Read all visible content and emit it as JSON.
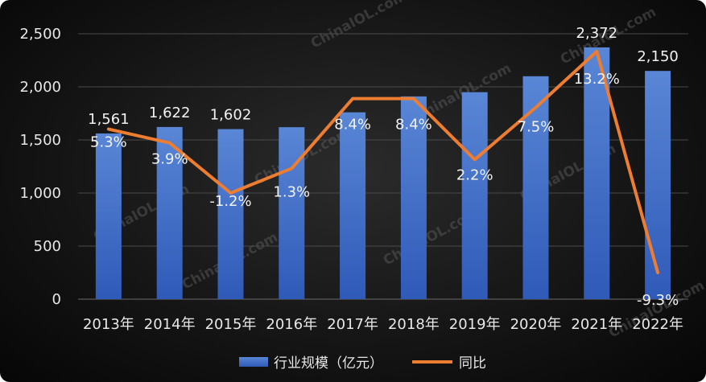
{
  "chart_data": {
    "type": "bar",
    "categories": [
      "2013年",
      "2014年",
      "2015年",
      "2016年",
      "2017年",
      "2018年",
      "2019年",
      "2020年",
      "2021年",
      "2022年"
    ],
    "series": [
      {
        "name": "行业规模（亿元）",
        "type": "bar",
        "axis": "left",
        "values": [
          1561,
          1622,
          1602,
          1620,
          1760,
          1910,
          1950,
          2100,
          2372,
          2150
        ],
        "labels": [
          "1,561",
          "1,622",
          "1,602",
          "",
          "",
          "",
          "",
          "",
          "2,372",
          "2,150"
        ],
        "color": "#4472c4"
      },
      {
        "name": "同比",
        "type": "line",
        "axis": "right",
        "values": [
          5.3,
          3.9,
          -1.2,
          1.3,
          8.4,
          8.4,
          2.2,
          7.5,
          13.2,
          -9.3
        ],
        "labels": [
          "5.3%",
          "3.9%",
          "-1.2%",
          "1.3%",
          "8.4%",
          "8.4%",
          "2.2%",
          "7.5%",
          "13.2%",
          "-9.3%"
        ],
        "color": "#ed7d31"
      }
    ],
    "yaxis_left": {
      "ticks": [
        "0",
        "500",
        "1,000",
        "1,500",
        "2,000",
        "2,500"
      ],
      "min": 0,
      "max": 2500
    },
    "yaxis_right": {
      "min": -12,
      "max": 15,
      "visible": false
    },
    "grid": true,
    "legend_position": "bottom",
    "watermark": "ChinaIOL.com"
  }
}
